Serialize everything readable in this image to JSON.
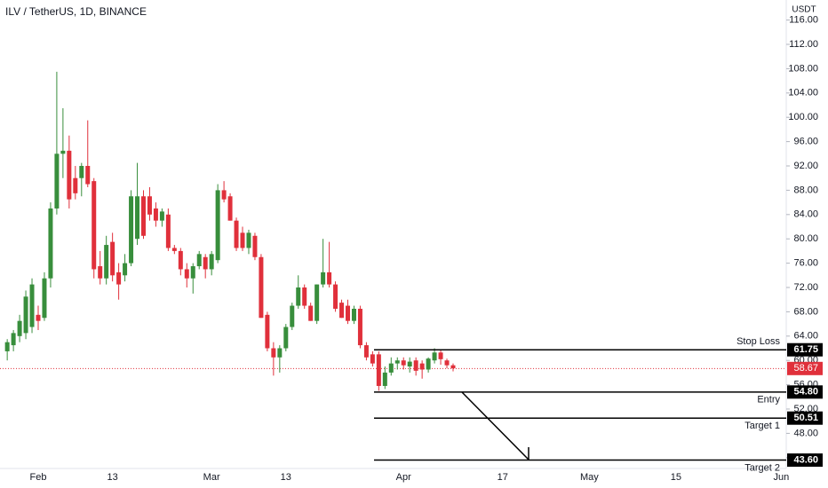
{
  "chart_data": {
    "type": "candlestick",
    "title": "ILV / TetherUS, 1D, BINANCE",
    "currency": "USDT",
    "x": [
      "01-27",
      "01-28",
      "01-29",
      "01-30",
      "01-31",
      "02-01",
      "02-02",
      "02-03",
      "02-04",
      "02-05",
      "02-06",
      "02-07",
      "02-08",
      "02-09",
      "02-10",
      "02-11",
      "02-12",
      "02-13",
      "02-14",
      "02-15",
      "02-16",
      "02-17",
      "02-18",
      "02-19",
      "02-20",
      "02-21",
      "02-22",
      "02-23",
      "02-24",
      "02-25",
      "02-26",
      "02-27",
      "02-28",
      "03-01",
      "03-02",
      "03-03",
      "03-04",
      "03-05",
      "03-06",
      "03-07",
      "03-08",
      "03-09",
      "03-10",
      "03-11",
      "03-12",
      "03-13",
      "03-14",
      "03-15",
      "03-16",
      "03-17",
      "03-18",
      "03-19",
      "03-20",
      "03-21",
      "03-22",
      "03-23",
      "03-24",
      "03-25",
      "03-26",
      "03-27",
      "03-28",
      "03-29",
      "03-30",
      "03-31",
      "04-01",
      "04-02",
      "04-03",
      "04-04",
      "04-05",
      "04-06",
      "04-07",
      "04-08",
      "04-09"
    ],
    "open": [
      61.5,
      62.5,
      64,
      64.5,
      65.5,
      67.5,
      67,
      73.5,
      85,
      94,
      94.5,
      90,
      90,
      92,
      89.5,
      75.5,
      73.5,
      79.5,
      74.5,
      74,
      76,
      80,
      87,
      87,
      85,
      83,
      84,
      78.5,
      78,
      75,
      73.5,
      75.5,
      77,
      75,
      76.5,
      88,
      87,
      83,
      81,
      78.5,
      80.5,
      77,
      67.5,
      62,
      60.5,
      62,
      65.5,
      69,
      72,
      69,
      66.5,
      72.5,
      74.5,
      72.5,
      69.5,
      69,
      66.5,
      68.5,
      62.5,
      61,
      61,
      55.8,
      58,
      59.5,
      60,
      59,
      60,
      59.5,
      58.5,
      60,
      61.3,
      60,
      59.2
    ],
    "high": [
      63.5,
      65,
      67.5,
      71.5,
      73.5,
      69,
      74.5,
      86,
      107.5,
      101.5,
      97,
      92,
      92.5,
      99.5,
      90,
      78,
      80.5,
      81,
      76,
      77.5,
      88,
      92.5,
      88,
      88.5,
      86,
      85,
      85,
      79,
      78.5,
      76,
      76,
      78,
      77.5,
      78,
      89,
      89.5,
      87.5,
      83.5,
      82,
      81.5,
      81,
      77.5,
      68,
      63,
      62.5,
      66,
      69.5,
      74,
      72.5,
      69.5,
      72.5,
      80,
      79.5,
      73,
      70,
      70,
      69,
      69,
      63,
      61.5,
      61.5,
      59,
      60.5,
      60.5,
      60.5,
      60.5,
      60.5,
      60,
      60.5,
      62,
      61.7,
      60.3,
      59.5
    ],
    "low": [
      60,
      61.5,
      63,
      63.5,
      64.5,
      65,
      66.5,
      72,
      84,
      90,
      85,
      86.5,
      87,
      88.5,
      73.5,
      72.5,
      72.5,
      73,
      70,
      73,
      75.5,
      79,
      80,
      83,
      82,
      82,
      78,
      77.5,
      74,
      72,
      71,
      75,
      73.5,
      74,
      76,
      86,
      83,
      78,
      78,
      77.5,
      76.5,
      67,
      61.5,
      57.5,
      58,
      61.5,
      65,
      68.5,
      68.5,
      66.5,
      66,
      72,
      72,
      68,
      67,
      66,
      66,
      62,
      60,
      59,
      55,
      55.3,
      57.5,
      58.5,
      58.5,
      58,
      57.5,
      57,
      58,
      59.5,
      59.3,
      58.7,
      58.2
    ],
    "close": [
      63,
      64.5,
      66.5,
      70.5,
      72.5,
      66.5,
      73.5,
      85,
      94,
      94.5,
      86.5,
      87.5,
      92,
      89,
      75,
      73.5,
      79,
      74,
      72.5,
      76,
      87,
      87,
      80.5,
      84,
      83,
      84.5,
      78.5,
      78,
      75,
      73.5,
      75.5,
      77.5,
      75,
      77.5,
      88,
      86.5,
      83,
      78.5,
      78.5,
      81,
      77,
      67,
      62,
      60.5,
      62,
      65.5,
      69,
      72,
      69,
      66.5,
      72.5,
      74.5,
      72.5,
      68.5,
      67,
      66.5,
      68.5,
      62.5,
      60.5,
      59.5,
      55.8,
      58,
      59.5,
      60,
      59.2,
      59.8,
      58.3,
      58.5,
      60.3,
      61.3,
      60.2,
      59.2,
      58.7
    ],
    "up_color": "#388e3c",
    "down_color": "#e0303b",
    "current_price": 58.67,
    "levels": [
      {
        "name": "Stop Loss",
        "value": 61.75
      },
      {
        "name": "Entry",
        "value": 54.8,
        "value_label": "54.80"
      },
      {
        "name": "Target 1",
        "value": 50.51
      },
      {
        "name": "Target 2",
        "value": 43.6,
        "value_label": "43.60"
      }
    ],
    "ylim": [
      42.22,
      119.3
    ],
    "yticks": [
      {
        "value": 44,
        "label": "44.00"
      },
      {
        "value": 48,
        "label": "48.00"
      },
      {
        "value": 52,
        "label": "52.00"
      },
      {
        "value": 56,
        "label": "56.00"
      },
      {
        "value": 60,
        "label": "60.00"
      },
      {
        "value": 64,
        "label": "64.00"
      },
      {
        "value": 68,
        "label": "68.00"
      },
      {
        "value": 72,
        "label": "72.00"
      },
      {
        "value": 76,
        "label": "76.00"
      },
      {
        "value": 80,
        "label": "80.00"
      },
      {
        "value": 84,
        "label": "84.00"
      },
      {
        "value": 88,
        "label": "88.00"
      },
      {
        "value": 92,
        "label": "92.00"
      },
      {
        "value": 96,
        "label": "96.00"
      },
      {
        "value": 100,
        "label": "100.00"
      },
      {
        "value": 104,
        "label": "104.00"
      },
      {
        "value": 108,
        "label": "108.00"
      },
      {
        "value": 112,
        "label": "112.00"
      },
      {
        "value": 116,
        "label": "116.00"
      }
    ],
    "xticks": [
      {
        "value": "02-01",
        "label": "Feb"
      },
      {
        "value": "02-13",
        "label": "13"
      },
      {
        "value": "03-01",
        "label": "Mar"
      },
      {
        "value": "03-13",
        "label": "13"
      },
      {
        "value": "04-01",
        "label": "Apr"
      },
      {
        "value": "04-17",
        "label": "17"
      },
      {
        "value": "05-01",
        "label": "May"
      },
      {
        "value": "05-15",
        "label": "15"
      },
      {
        "value": "06-01",
        "label": "Jun"
      }
    ],
    "grid": false
  }
}
